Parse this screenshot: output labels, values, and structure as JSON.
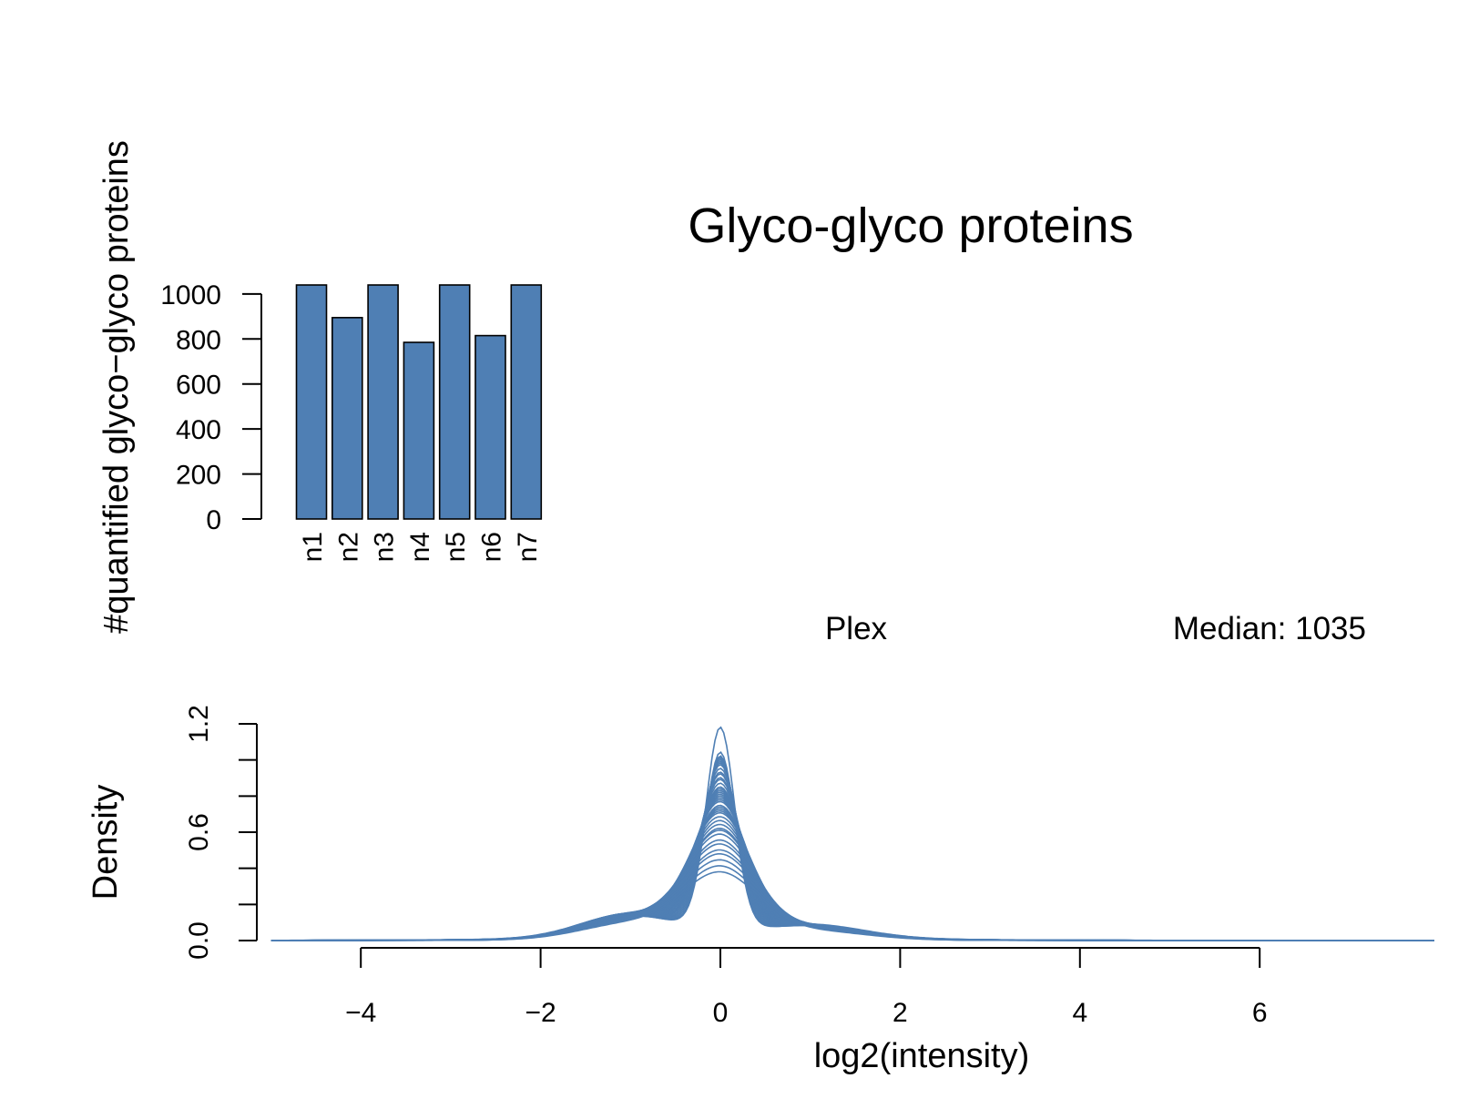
{
  "title": "Glyco-glyco proteins",
  "colors": {
    "series": "#4f7fb4",
    "axis": "#000000",
    "background": "#ffffff"
  },
  "chart_data": [
    {
      "type": "bar",
      "categories": [
        "n1",
        "n2",
        "n3",
        "n4",
        "n5",
        "n6",
        "n7"
      ],
      "values": [
        1040,
        895,
        1040,
        785,
        1040,
        815,
        1040
      ],
      "ylabel": "#quantified glyco−glyco proteins",
      "xlabel": "",
      "yticks": [
        0,
        200,
        400,
        600,
        800,
        1000
      ],
      "ytick_labels": [
        "0",
        "200",
        "400",
        "600",
        "800",
        "1000"
      ],
      "ylim": [
        0,
        1040
      ],
      "xlabel_orientation": "vertical",
      "grid": false
    },
    {
      "type": "line",
      "subtitle": "Plex",
      "annotation": "Median: 1035",
      "xlabel": "log2(intensity)",
      "ylabel": "Density",
      "xlim": [
        -5,
        8
      ],
      "ylim": [
        0,
        1.2
      ],
      "xticks": [
        -4,
        -2,
        0,
        2,
        4,
        6
      ],
      "xtick_labels": [
        "−4",
        "−2",
        "0",
        "2",
        "4",
        "6"
      ],
      "yticks": [
        0.0,
        0.2,
        0.4,
        0.6,
        0.8,
        1.0,
        1.2
      ],
      "ytick_labels": [
        "0.0",
        "",
        "",
        "0.6",
        "",
        "",
        "1.2"
      ],
      "grid": false,
      "series_peaks": [
        1.1,
        0.97,
        0.95,
        0.94,
        0.93,
        0.92,
        0.91,
        0.9,
        0.88,
        0.86,
        0.85,
        0.83,
        0.82,
        0.8,
        0.78,
        0.77,
        0.76,
        0.75,
        0.74,
        0.73,
        0.72,
        0.71,
        0.7,
        0.68,
        0.67,
        0.66,
        0.65,
        0.64,
        0.62,
        0.6,
        0.58,
        0.56,
        0.55,
        0.53,
        0.5,
        0.48,
        0.45,
        0.43,
        0.4,
        0.37,
        0.34
      ]
    }
  ]
}
